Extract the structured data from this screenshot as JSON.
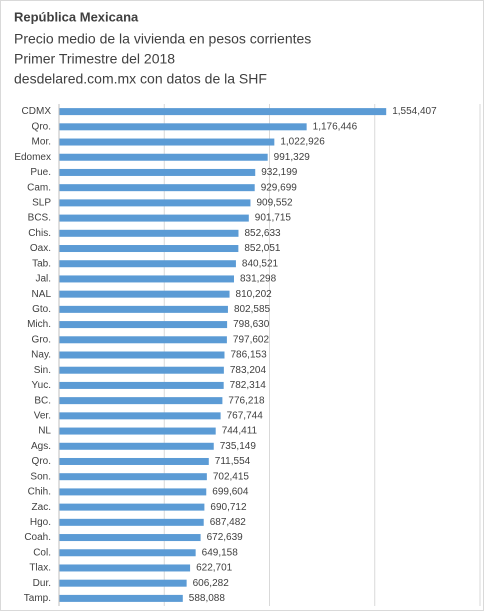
{
  "chart_data": {
    "type": "bar",
    "orientation": "horizontal",
    "title": "República Mexicana",
    "subtitle": [
      "Precio medio de la vivienda en pesos corrientes",
      "Primer Trimestre del 2018",
      "desdelared.com.mx con datos de la SHF"
    ],
    "categories": [
      "CDMX",
      "Qro.",
      "Mor.",
      "Edomex",
      "Pue.",
      "Cam.",
      "SLP",
      "BCS.",
      "Chis.",
      "Oax.",
      "Tab.",
      "Jal.",
      "NAL",
      "Gto.",
      "Mich.",
      "Gro.",
      "Nay.",
      "Sin.",
      "Yuc.",
      "BC.",
      "Ver.",
      "NL",
      "Ags.",
      "Qro.",
      "Son.",
      "Chih.",
      "Zac.",
      "Hgo.",
      "Coah.",
      "Col.",
      "Tlax.",
      "Dur.",
      "Tamp."
    ],
    "values": [
      1554407,
      1176446,
      1022926,
      991329,
      932199,
      929699,
      909552,
      901715,
      852633,
      852051,
      840521,
      831298,
      810202,
      802585,
      798630,
      797602,
      786153,
      783204,
      782314,
      776218,
      767744,
      744411,
      735149,
      711554,
      702415,
      699604,
      690712,
      687482,
      672639,
      649158,
      622701,
      606282,
      588088
    ],
    "value_labels": [
      "1,554,407",
      "1,176,446",
      "1,022,926",
      "991,329",
      "932,199",
      "929,699",
      "909,552",
      "901,715",
      "852,633",
      "852,051",
      "840,521",
      "831,298",
      "810,202",
      "802,585",
      "798,630",
      "797,602",
      "786,153",
      "783,204",
      "782,314",
      "776,218",
      "767,744",
      "744,411",
      "735,149",
      "711,554",
      "702,415",
      "699,604",
      "690,712",
      "687,482",
      "672,639",
      "649,158",
      "622,701",
      "606,282",
      "588,088"
    ],
    "color": "#5b9bd5",
    "xlim": [
      0,
      2000000
    ],
    "xticks": [
      0,
      500000,
      1000000,
      1500000,
      2000000
    ],
    "grid": true
  }
}
